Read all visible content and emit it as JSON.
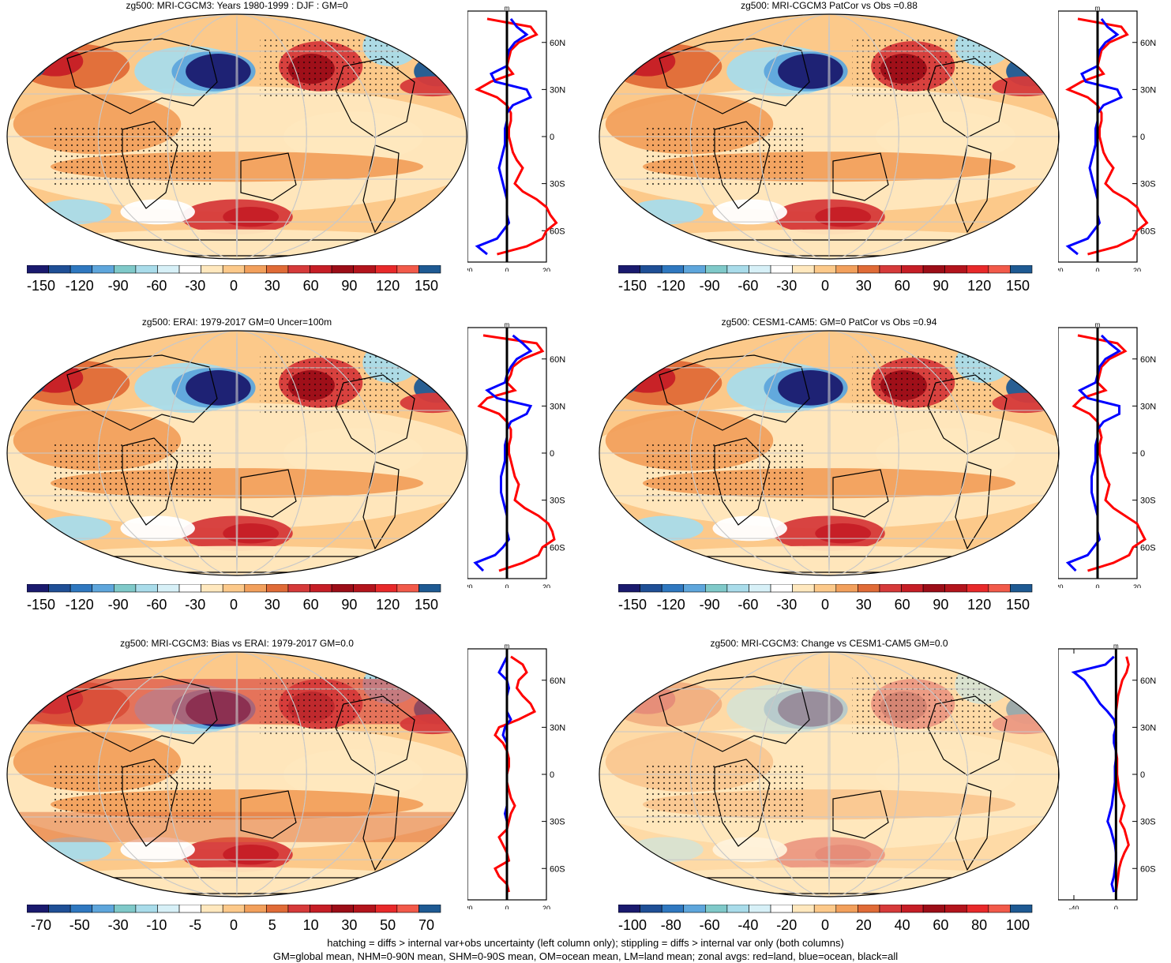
{
  "colors": {
    "scale": [
      "#1a1a6e",
      "#1f4f96",
      "#2f78c0",
      "#5ea6dc",
      "#7fc9c9",
      "#a9dcea",
      "#d7f0f7",
      "#ffffff",
      "#ffe8be",
      "#fcc98a",
      "#f2a05c",
      "#e06b37",
      "#d63a3a",
      "#c61e26",
      "#9c0d17",
      "#b3141c",
      "#e8292a",
      "#f25a4a",
      "#1e5a93"
    ],
    "land_line": "#000000",
    "grid_line": "#c8c8c8",
    "zonal_land": "#ff0000",
    "zonal_ocean": "#0000ff",
    "zonal_all": "#000000"
  },
  "panels": [
    {
      "title": "zg500: MRI-CGCM3: Years 1980-1999 : DJF : GM=0",
      "colorbar_labels": [
        "-150",
        "-120",
        "-90",
        "-60",
        "-30",
        "0",
        "30",
        "60",
        "90",
        "120",
        "150"
      ],
      "zonal_axis": {
        "unit": "m",
        "x_ticks": [
          "-20",
          "0",
          "20"
        ],
        "lat_labels": [
          "60N",
          "30N",
          "0",
          "30S",
          "60S"
        ],
        "xrange": [
          -20,
          20
        ]
      },
      "zonal_data": {
        "lat": [
          75,
          70,
          65,
          60,
          55,
          50,
          45,
          40,
          35,
          30,
          25,
          20,
          15,
          10,
          5,
          0,
          -5,
          -10,
          -15,
          -20,
          -25,
          -30,
          -35,
          -40,
          -45,
          -50,
          -55,
          -60,
          -65,
          -70,
          -75
        ],
        "land": [
          -10,
          12,
          15,
          6,
          2,
          1,
          0,
          3,
          -8,
          -15,
          -5,
          0,
          2,
          2,
          1,
          1,
          2,
          3,
          5,
          8,
          6,
          4,
          8,
          15,
          20,
          22,
          25,
          20,
          18,
          10,
          -5
        ],
        "ocean": [
          2,
          5,
          10,
          4,
          1,
          0,
          0,
          -8,
          -6,
          10,
          12,
          3,
          0,
          0,
          -1,
          -1,
          -1,
          -2,
          -3,
          -4,
          -3,
          -2,
          -1,
          0,
          0,
          0,
          1,
          -2,
          -5,
          -15,
          -10
        ]
      },
      "hatch": true
    },
    {
      "title": "zg500: MRI-CGCM3 PatCor vs Obs =0.88",
      "colorbar_labels": [
        "-150",
        "-120",
        "-90",
        "-60",
        "-30",
        "0",
        "30",
        "60",
        "90",
        "120",
        "150"
      ],
      "zonal_axis": {
        "unit": "m",
        "x_ticks": [
          "-20",
          "0",
          "20"
        ],
        "lat_labels": [
          "60N",
          "30N",
          "0",
          "30S",
          "60S"
        ],
        "xrange": [
          -20,
          20
        ]
      },
      "zonal_data": {
        "lat": [
          75,
          70,
          65,
          60,
          55,
          50,
          45,
          40,
          35,
          30,
          25,
          20,
          15,
          10,
          5,
          0,
          -5,
          -10,
          -15,
          -20,
          -25,
          -30,
          -35,
          -40,
          -45,
          -50,
          -55,
          -60,
          -65,
          -70,
          -75
        ],
        "land": [
          -10,
          12,
          15,
          6,
          2,
          1,
          0,
          3,
          -8,
          -15,
          -5,
          0,
          2,
          2,
          1,
          1,
          2,
          3,
          5,
          8,
          6,
          4,
          8,
          15,
          20,
          22,
          25,
          20,
          18,
          10,
          -5
        ],
        "ocean": [
          2,
          5,
          10,
          4,
          1,
          0,
          0,
          -8,
          -6,
          10,
          12,
          3,
          0,
          0,
          -1,
          -1,
          -1,
          -2,
          -3,
          -4,
          -3,
          -2,
          -1,
          0,
          0,
          0,
          1,
          -2,
          -5,
          -15,
          -10
        ]
      },
      "hatch": false
    },
    {
      "title": "zg500: ERAI: 1979-2017 GM=0 Uncer=100m",
      "colorbar_labels": [
        "-150",
        "-120",
        "-90",
        "-60",
        "-30",
        "0",
        "30",
        "60",
        "90",
        "120",
        "150"
      ],
      "zonal_axis": {
        "unit": "m",
        "x_ticks": [
          "-20",
          "0",
          "20"
        ],
        "lat_labels": [
          "60N",
          "30N",
          "0",
          "30S",
          "60S"
        ],
        "xrange": [
          -20,
          20
        ]
      },
      "zonal_data": {
        "lat": [
          75,
          70,
          65,
          60,
          55,
          50,
          45,
          40,
          35,
          30,
          25,
          20,
          15,
          10,
          5,
          0,
          -5,
          -10,
          -15,
          -20,
          -25,
          -30,
          -35,
          -40,
          -45,
          -50,
          -55,
          -60,
          -65,
          -70,
          -75
        ],
        "land": [
          -12,
          15,
          18,
          8,
          3,
          2,
          0,
          4,
          -10,
          -14,
          -4,
          0,
          2,
          2,
          1,
          1,
          2,
          3,
          4,
          6,
          5,
          4,
          9,
          16,
          21,
          23,
          24,
          18,
          16,
          8,
          -4
        ],
        "ocean": [
          3,
          8,
          12,
          5,
          2,
          0,
          -1,
          -10,
          -5,
          12,
          10,
          2,
          0,
          0,
          -1,
          -1,
          -1,
          -2,
          -3,
          -3,
          -3,
          -2,
          -1,
          0,
          0,
          0,
          1,
          -2,
          -6,
          -16,
          -12
        ]
      },
      "hatch": true
    },
    {
      "title": "zg500: CESM1-CAM5: GM=0 PatCor vs Obs =0.94",
      "colorbar_labels": [
        "-150",
        "-120",
        "-90",
        "-60",
        "-30",
        "0",
        "30",
        "60",
        "90",
        "120",
        "150"
      ],
      "zonal_axis": {
        "unit": "m",
        "x_ticks": [
          "-20",
          "0",
          "20"
        ],
        "lat_labels": [
          "60N",
          "30N",
          "0",
          "30S",
          "60S"
        ],
        "xrange": [
          -20,
          20
        ]
      },
      "zonal_data": {
        "lat": [
          75,
          70,
          65,
          60,
          55,
          50,
          45,
          40,
          35,
          30,
          25,
          20,
          15,
          10,
          5,
          0,
          -5,
          -10,
          -15,
          -20,
          -25,
          -30,
          -35,
          -40,
          -45,
          -50,
          -55,
          -60,
          -65,
          -70,
          -75
        ],
        "land": [
          -10,
          10,
          14,
          6,
          2,
          1,
          0,
          4,
          -8,
          -12,
          -4,
          0,
          1,
          2,
          1,
          1,
          2,
          3,
          4,
          6,
          5,
          4,
          8,
          14,
          20,
          22,
          24,
          18,
          16,
          8,
          -5
        ],
        "ocean": [
          2,
          6,
          11,
          4,
          1,
          0,
          -1,
          -9,
          -5,
          11,
          11,
          3,
          0,
          0,
          -1,
          -1,
          -1,
          -2,
          -3,
          -3,
          -3,
          -2,
          -1,
          0,
          0,
          0,
          1,
          -2,
          -5,
          -15,
          -11
        ]
      },
      "hatch": false
    },
    {
      "title": "zg500: MRI-CGCM3: Bias vs ERAI: 1979-2017 GM=0.0",
      "colorbar_labels": [
        "-70",
        "-50",
        "-30",
        "-10",
        "-5",
        "0",
        "5",
        "10",
        "30",
        "50",
        "70"
      ],
      "zonal_axis": {
        "unit": "m",
        "x_ticks": [
          "-20",
          "0",
          "20"
        ],
        "lat_labels": [
          "60N",
          "30N",
          "0",
          "30S",
          "60S"
        ],
        "xrange": [
          -20,
          20
        ]
      },
      "zonal_data": {
        "lat": [
          75,
          70,
          65,
          60,
          55,
          50,
          45,
          40,
          35,
          30,
          25,
          20,
          15,
          10,
          5,
          0,
          -5,
          -10,
          -15,
          -20,
          -25,
          -30,
          -35,
          -40,
          -45,
          -50,
          -55,
          -60,
          -65,
          -70,
          -75
        ],
        "land": [
          2,
          8,
          10,
          6,
          5,
          8,
          12,
          14,
          6,
          -4,
          -6,
          -2,
          0,
          1,
          1,
          0,
          0,
          1,
          2,
          4,
          2,
          1,
          0,
          -4,
          -2,
          0,
          1,
          -6,
          -4,
          0,
          1
        ],
        "ocean": [
          0,
          -2,
          -4,
          0,
          1,
          0,
          0,
          0,
          2,
          -1,
          -2,
          0,
          0,
          0,
          0,
          0,
          0,
          0,
          0,
          0,
          -1,
          0,
          0,
          0,
          0,
          0,
          0,
          0,
          0,
          0,
          0
        ]
      },
      "hatch": true
    },
    {
      "title": "zg500: MRI-CGCM3: Change vs CESM1-CAM5 GM=0.0",
      "colorbar_labels": [
        "-100",
        "-80",
        "-60",
        "-40",
        "-20",
        "0",
        "20",
        "40",
        "60",
        "80",
        "100"
      ],
      "zonal_axis": {
        "unit": "m",
        "x_ticks": [
          "-40",
          "0"
        ],
        "lat_labels": [
          "60N",
          "30N",
          "0",
          "30S",
          "60S"
        ],
        "xrange": [
          -55,
          20
        ]
      },
      "zonal_data": {
        "lat": [
          75,
          70,
          65,
          60,
          55,
          50,
          45,
          40,
          35,
          30,
          25,
          20,
          15,
          10,
          5,
          0,
          -5,
          -10,
          -15,
          -20,
          -25,
          -30,
          -35,
          -40,
          -45,
          -50,
          -55,
          -60,
          -65,
          -70,
          -75
        ],
        "land": [
          10,
          12,
          10,
          6,
          4,
          2,
          1,
          0,
          0,
          0,
          -1,
          0,
          0,
          1,
          1,
          1,
          2,
          3,
          5,
          8,
          6,
          4,
          8,
          10,
          12,
          8,
          5,
          3,
          2,
          1,
          0
        ],
        "ocean": [
          -2,
          -10,
          -40,
          -30,
          -25,
          -20,
          -15,
          -8,
          -2,
          0,
          -2,
          -2,
          0,
          0,
          -1,
          -1,
          -1,
          -2,
          -3,
          -4,
          -6,
          -8,
          -5,
          -3,
          -1,
          0,
          0,
          -1,
          -2,
          -4,
          -2
        ]
      },
      "hatch": false
    }
  ],
  "footer": {
    "line1": "hatching = diffs > internal var+obs uncertainty (left column only); stippling = diffs > internal var only (both columns)",
    "line2": "GM=global mean, NHM=0-90N mean, SHM=0-90S mean, OM=ocean mean, LM=land mean; zonal avgs: red=land, blue=ocean, black=all"
  }
}
